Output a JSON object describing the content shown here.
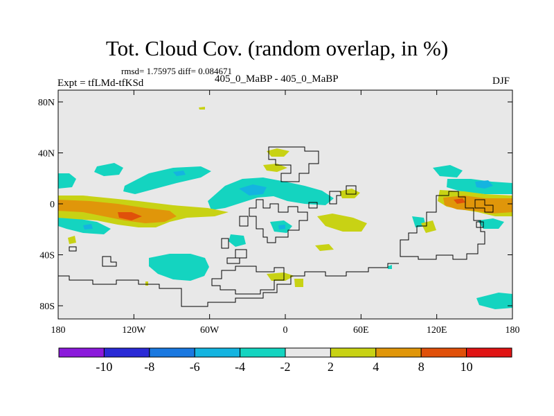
{
  "title": "Tot. Cloud Cov. (random overlap, in %)",
  "stats": "rmsd= 1.75975  diff= 0.084671",
  "expt": "Expt = tfLMd-tfKSd",
  "subtitle": "405_0_MaBP - 405_0_MaBP",
  "season": "DJF",
  "lat_ticks": [
    "80N",
    "40N",
    "0",
    "40S",
    "80S"
  ],
  "lon_ticks": [
    "180",
    "120W",
    "60W",
    "0",
    "60E",
    "120E",
    "180"
  ],
  "colorbar": {
    "labels": [
      "-10",
      "-8",
      "-6",
      "-4",
      "-2",
      "2",
      "4",
      "8",
      "10"
    ],
    "colors": [
      "#8b1adb",
      "#2a2ad6",
      "#1a78e0",
      "#14b4e0",
      "#14d4c0",
      "#e8e8e8",
      "#c8d214",
      "#e0960a",
      "#e0500a",
      "#e01414"
    ]
  },
  "palette": {
    "background": "#e8e8e8",
    "teal": "#14d4c0",
    "cyan": "#14b4e0",
    "yellow": "#c8d214",
    "orange": "#e0960a",
    "red": "#e0500a",
    "coast": "#000000"
  }
}
